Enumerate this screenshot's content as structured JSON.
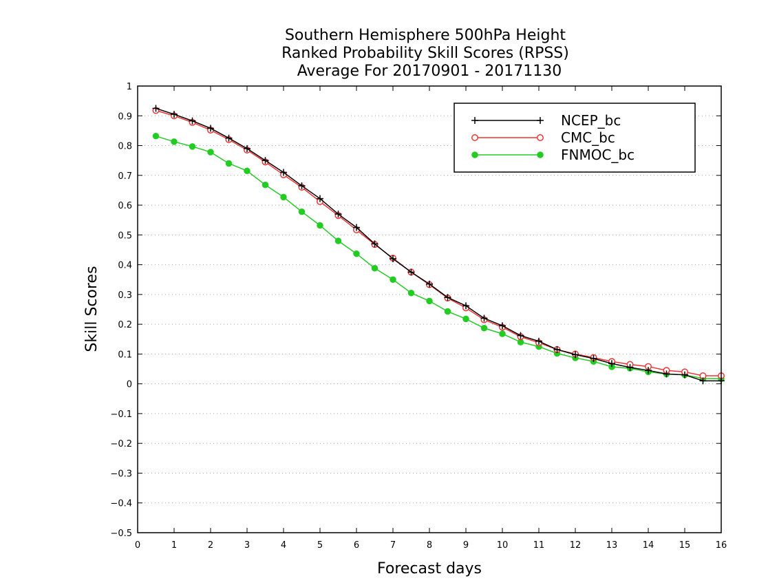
{
  "chart_data": {
    "type": "line",
    "title": [
      "Southern Hemisphere 500hPa Height",
      "Ranked Probability Skill Scores (RPSS)",
      "Average For 20170901 - 20171130"
    ],
    "xlabel": "Forecast days",
    "ylabel": "Skill Scores",
    "xlim": [
      0,
      16
    ],
    "ylim": [
      -0.5,
      1
    ],
    "xticks": [
      0,
      1,
      2,
      3,
      4,
      5,
      6,
      7,
      8,
      9,
      10,
      11,
      12,
      13,
      14,
      15,
      16
    ],
    "yticks": [
      -0.5,
      -0.4,
      -0.3,
      -0.2,
      -0.1,
      0,
      0.1,
      0.2,
      0.3,
      0.4,
      0.5,
      0.6,
      0.7,
      0.8,
      0.9,
      1
    ],
    "ytick_labels": [
      "−0.5",
      "−0.4",
      "−0.3",
      "−0.2",
      "−0.1",
      "0",
      "0.1",
      "0.2",
      "0.3",
      "0.4",
      "0.5",
      "0.6",
      "0.7",
      "0.8",
      "0.9",
      "1"
    ],
    "grid": "horizontal-dotted",
    "legend_position": "top-right",
    "x": [
      0.5,
      1,
      1.5,
      2,
      2.5,
      3,
      3.5,
      4,
      4.5,
      5,
      5.5,
      6,
      6.5,
      7,
      7.5,
      8,
      8.5,
      9,
      9.5,
      10,
      10.5,
      11,
      11.5,
      12,
      12.5,
      13,
      13.5,
      14,
      14.5,
      15,
      15.5,
      16
    ],
    "series": [
      {
        "name": "NCEP_bc",
        "color": "#000000",
        "marker": "plus",
        "values": [
          0.925,
          0.905,
          0.883,
          0.858,
          0.825,
          0.79,
          0.75,
          0.71,
          0.665,
          0.622,
          0.57,
          0.525,
          0.47,
          0.42,
          0.375,
          0.335,
          0.29,
          0.262,
          0.22,
          0.195,
          0.162,
          0.143,
          0.115,
          0.098,
          0.085,
          0.068,
          0.055,
          0.045,
          0.033,
          0.03,
          0.01,
          0.01
        ]
      },
      {
        "name": "CMC_bc",
        "color": "#ee3333",
        "marker": "open-circle",
        "values": [
          0.918,
          0.9,
          0.878,
          0.852,
          0.82,
          0.785,
          0.745,
          0.702,
          0.66,
          0.612,
          0.565,
          0.517,
          0.468,
          0.422,
          0.375,
          0.333,
          0.288,
          0.255,
          0.215,
          0.19,
          0.158,
          0.138,
          0.115,
          0.1,
          0.088,
          0.075,
          0.065,
          0.058,
          0.045,
          0.04,
          0.027,
          0.027
        ]
      },
      {
        "name": "FNMOC_bc",
        "color": "#22cc22",
        "marker": "filled-circle",
        "values": [
          0.832,
          0.813,
          0.797,
          0.778,
          0.74,
          0.715,
          0.668,
          0.627,
          0.578,
          0.532,
          0.48,
          0.437,
          0.388,
          0.35,
          0.305,
          0.278,
          0.243,
          0.218,
          0.187,
          0.168,
          0.14,
          0.125,
          0.102,
          0.087,
          0.075,
          0.057,
          0.052,
          0.04,
          0.033,
          0.03,
          0.018,
          0.017
        ]
      }
    ]
  }
}
